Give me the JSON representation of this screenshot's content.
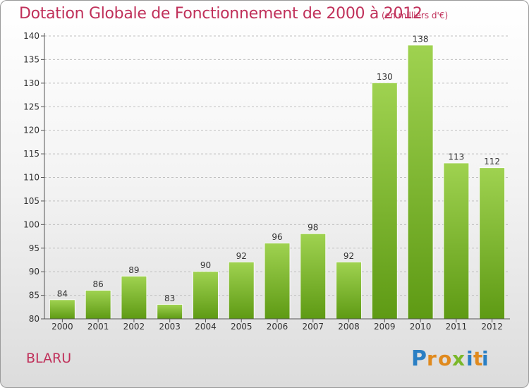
{
  "title": "Dotation Globale de Fonctionnement de 2000 à 2012",
  "unit_note": "(en milliers d'€)",
  "commune": "BLARU",
  "logo": "Proxiti",
  "colors": {
    "title": "#c0305a",
    "bar_top": "#9fd250",
    "bar_bottom": "#5e9a14",
    "grid": "#bfbfbf"
  },
  "chart_data": {
    "type": "bar",
    "title": "Dotation Globale de Fonctionnement de 2000 à 2012",
    "subtitle": "(en milliers d'€)",
    "xlabel": "",
    "ylabel": "",
    "categories": [
      "2000",
      "2001",
      "2002",
      "2003",
      "2004",
      "2005",
      "2006",
      "2007",
      "2008",
      "2009",
      "2010",
      "2011",
      "2012"
    ],
    "values": [
      84,
      86,
      89,
      83,
      90,
      92,
      96,
      98,
      92,
      130,
      138,
      113,
      112
    ],
    "ylim": [
      80,
      140
    ],
    "yticks": [
      80,
      85,
      90,
      95,
      100,
      105,
      110,
      115,
      120,
      125,
      130,
      135,
      140
    ],
    "grid": true,
    "data_labels": true
  }
}
